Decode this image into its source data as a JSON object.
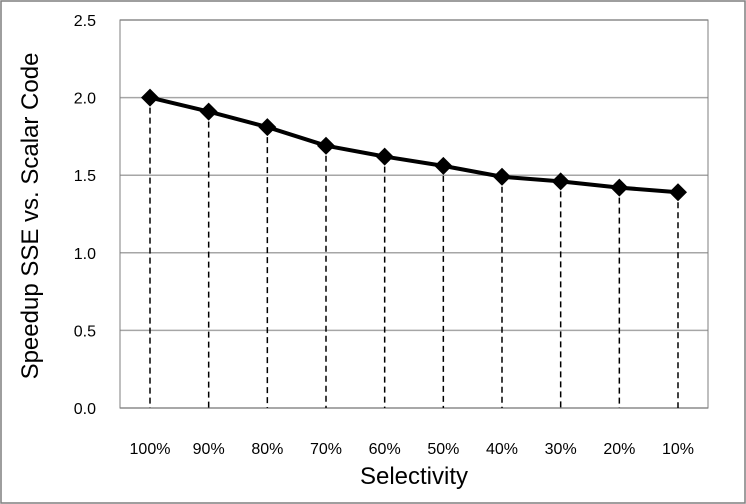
{
  "chart_data": {
    "type": "line",
    "title": "",
    "xlabel": "Selectivity",
    "ylabel": "Speedup SSE vs. Scalar Code",
    "categories": [
      "100%",
      "90%",
      "80%",
      "70%",
      "60%",
      "50%",
      "40%",
      "30%",
      "20%",
      "10%"
    ],
    "series": [
      {
        "values": [
          2.0,
          1.91,
          1.81,
          1.69,
          1.62,
          1.56,
          1.49,
          1.46,
          1.42,
          1.39
        ]
      }
    ],
    "ylim": [
      0,
      2.5
    ],
    "yticks": [
      "0.0",
      "0.5",
      "1.0",
      "1.5",
      "2.0",
      "2.5"
    ],
    "grid": true,
    "drop_lines": true,
    "marker": "diamond",
    "colors": {
      "line": "#000000",
      "grid": "#a6a6a6",
      "border": "#7f7f7f"
    }
  }
}
